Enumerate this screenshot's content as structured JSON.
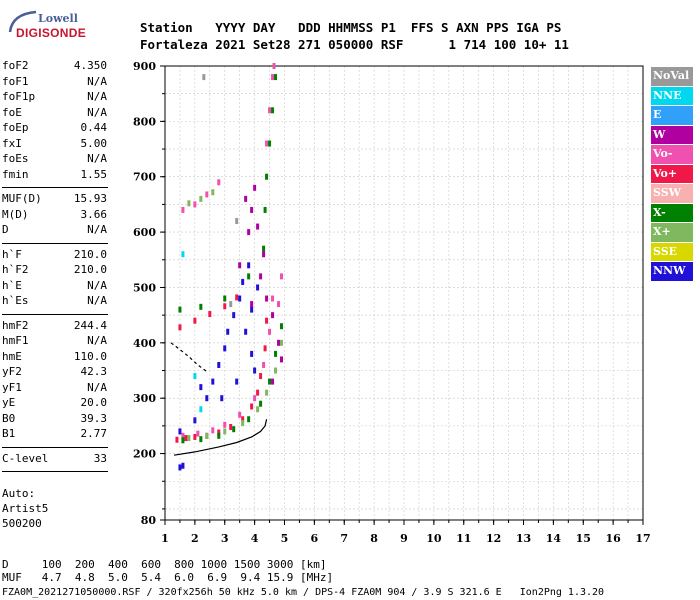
{
  "logo": {
    "line1": "Lowell",
    "line2": "DIGISONDE"
  },
  "header": {
    "labels": "Station   YYYY DAY   DDD HHMMSS P1  FFS S AXN PPS IGA PS",
    "values": "Fortaleza 2021 Set28 271 050000 RSF      1 714 100 10+ 11"
  },
  "params": [
    {
      "group": [
        {
          "k": "foF2",
          "v": "4.350"
        },
        {
          "k": "foF1",
          "v": "N/A"
        },
        {
          "k": "foF1p",
          "v": "N/A"
        },
        {
          "k": "foE",
          "v": "N/A"
        },
        {
          "k": "foEp",
          "v": "0.44"
        },
        {
          "k": "fxI",
          "v": "5.00"
        },
        {
          "k": "foEs",
          "v": "N/A"
        },
        {
          "k": "fmin",
          "v": "1.55"
        }
      ]
    },
    {
      "group": [
        {
          "k": "MUF(D)",
          "v": "15.93"
        },
        {
          "k": "M(D)",
          "v": "3.66"
        },
        {
          "k": "D",
          "v": "N/A"
        }
      ]
    },
    {
      "group": [
        {
          "k": "h`F",
          "v": "210.0"
        },
        {
          "k": "h`F2",
          "v": "210.0"
        },
        {
          "k": "h`E",
          "v": "N/A"
        },
        {
          "k": "h`Es",
          "v": "N/A"
        }
      ]
    },
    {
      "group": [
        {
          "k": "hmF2",
          "v": "244.4"
        },
        {
          "k": "hmF1",
          "v": "N/A"
        },
        {
          "k": "hmE",
          "v": "110.0"
        },
        {
          "k": "yF2",
          "v": "42.3"
        },
        {
          "k": "yF1",
          "v": "N/A"
        },
        {
          "k": "yE",
          "v": "20.0"
        },
        {
          "k": "B0",
          "v": "39.3"
        },
        {
          "k": "B1",
          "v": "2.77"
        }
      ]
    },
    {
      "group": [
        {
          "k": "C-level",
          "v": "33"
        }
      ]
    }
  ],
  "auto": {
    "line1": "Auto:",
    "line2": "Artist5",
    "line3": "500200"
  },
  "legend": [
    {
      "label": "NoVal",
      "color": "#999999"
    },
    {
      "label": "NNE",
      "color": "#00d8f0"
    },
    {
      "label": "E",
      "color": "#30a0f8"
    },
    {
      "label": "W",
      "color": "#b000a0"
    },
    {
      "label": "Vo-",
      "color": "#f050b0"
    },
    {
      "label": "Vo+",
      "color": "#f01848"
    },
    {
      "label": "SSW",
      "color": "#f8b0b0"
    },
    {
      "label": "X-",
      "color": "#008000"
    },
    {
      "label": "X+",
      "color": "#80b860"
    },
    {
      "label": "SSE",
      "color": "#d8d800"
    },
    {
      "label": "NNW",
      "color": "#2010d8"
    }
  ],
  "bottom": {
    "d_row": "D     100  200  400  600  800 1000 1500 3000 [km]",
    "muf_row": "MUF   4.7  4.8  5.0  5.4  6.0  6.9  9.4 15.9 [MHz]",
    "footer": "FZA0M_2021271050000.RSF / 320fx256h 50 kHz 5.0 km / DPS-4 FZA0M 904 / 3.9 S 321.6 E   Ion2Png 1.3.20"
  },
  "chart_data": {
    "type": "scatter",
    "xlim": [
      1,
      17
    ],
    "ylim": [
      80,
      900
    ],
    "xticks": [
      1,
      2,
      3,
      4,
      5,
      6,
      7,
      8,
      9,
      10,
      11,
      12,
      13,
      14,
      15,
      16,
      17
    ],
    "yticks": [
      80,
      200,
      300,
      400,
      500,
      600,
      700,
      800,
      900
    ],
    "xlabel": "",
    "ylabel": "",
    "series": [
      {
        "name": "Vo+",
        "color": "#f01848",
        "points": [
          [
            1.4,
            225
          ],
          [
            1.7,
            228
          ],
          [
            2.0,
            230
          ],
          [
            2.4,
            232
          ],
          [
            2.8,
            238
          ],
          [
            3.2,
            248
          ],
          [
            3.6,
            262
          ],
          [
            3.9,
            285
          ],
          [
            4.1,
            310
          ],
          [
            4.2,
            340
          ],
          [
            4.35,
            390
          ],
          [
            4.4,
            440
          ],
          [
            1.5,
            428
          ],
          [
            2.0,
            440
          ],
          [
            2.5,
            452
          ],
          [
            3.0,
            466
          ],
          [
            3.4,
            482
          ]
        ]
      },
      {
        "name": "Vo-",
        "color": "#f050b0",
        "points": [
          [
            1.6,
            232
          ],
          [
            2.1,
            236
          ],
          [
            2.6,
            242
          ],
          [
            3.0,
            252
          ],
          [
            3.5,
            270
          ],
          [
            4.0,
            300
          ],
          [
            4.3,
            360
          ],
          [
            4.5,
            420
          ],
          [
            4.6,
            480
          ],
          [
            4.4,
            760
          ],
          [
            4.5,
            820
          ],
          [
            4.6,
            880
          ],
          [
            4.65,
            900
          ],
          [
            1.6,
            640
          ],
          [
            2.0,
            650
          ],
          [
            2.4,
            668
          ],
          [
            2.8,
            690
          ],
          [
            4.9,
            520
          ],
          [
            4.8,
            470
          ]
        ]
      },
      {
        "name": "X-",
        "color": "#008000",
        "points": [
          [
            1.6,
            224
          ],
          [
            2.2,
            226
          ],
          [
            2.8,
            232
          ],
          [
            3.3,
            244
          ],
          [
            3.8,
            262
          ],
          [
            4.2,
            290
          ],
          [
            4.5,
            330
          ],
          [
            4.7,
            380
          ],
          [
            4.9,
            430
          ],
          [
            4.3,
            570
          ],
          [
            4.35,
            640
          ],
          [
            4.4,
            700
          ],
          [
            4.5,
            760
          ],
          [
            4.6,
            820
          ],
          [
            4.7,
            880
          ],
          [
            1.5,
            460
          ],
          [
            2.2,
            465
          ],
          [
            3.0,
            480
          ],
          [
            3.8,
            520
          ]
        ]
      },
      {
        "name": "X+",
        "color": "#80b860",
        "points": [
          [
            1.8,
            228
          ],
          [
            2.4,
            232
          ],
          [
            3.0,
            240
          ],
          [
            3.6,
            255
          ],
          [
            4.1,
            280
          ],
          [
            4.4,
            310
          ],
          [
            4.7,
            350
          ],
          [
            4.9,
            400
          ],
          [
            1.8,
            652
          ],
          [
            2.2,
            660
          ],
          [
            2.6,
            672
          ]
        ]
      },
      {
        "name": "NNW",
        "color": "#2010d8",
        "points": [
          [
            1.5,
            175
          ],
          [
            1.6,
            178
          ],
          [
            1.5,
            240
          ],
          [
            2.0,
            260
          ],
          [
            2.4,
            300
          ],
          [
            2.6,
            330
          ],
          [
            2.8,
            360
          ],
          [
            3.0,
            390
          ],
          [
            3.1,
            420
          ],
          [
            3.3,
            450
          ],
          [
            3.5,
            480
          ],
          [
            3.6,
            510
          ],
          [
            3.8,
            540
          ],
          [
            3.7,
            420
          ],
          [
            3.9,
            380
          ],
          [
            4.0,
            350
          ],
          [
            2.2,
            320
          ],
          [
            2.9,
            300
          ],
          [
            3.4,
            330
          ],
          [
            3.9,
            460
          ],
          [
            4.1,
            500
          ]
        ]
      },
      {
        "name": "W",
        "color": "#b000a0",
        "points": [
          [
            3.5,
            540
          ],
          [
            3.8,
            600
          ],
          [
            3.9,
            640
          ],
          [
            4.0,
            680
          ],
          [
            4.2,
            520
          ],
          [
            4.4,
            480
          ],
          [
            4.6,
            450
          ],
          [
            4.8,
            400
          ],
          [
            4.9,
            370
          ],
          [
            4.6,
            330
          ],
          [
            3.9,
            470
          ],
          [
            4.3,
            560
          ],
          [
            4.1,
            610
          ],
          [
            3.7,
            660
          ]
        ]
      },
      {
        "name": "NNE",
        "color": "#00d8f0",
        "points": [
          [
            1.6,
            560
          ],
          [
            2.0,
            340
          ],
          [
            2.2,
            280
          ]
        ]
      },
      {
        "name": "NoVal",
        "color": "#999999",
        "points": [
          [
            2.3,
            880
          ],
          [
            3.2,
            470
          ],
          [
            3.4,
            620
          ]
        ]
      }
    ],
    "lines": [
      {
        "name": "profile",
        "color": "#000000",
        "points": [
          [
            1.3,
            197
          ],
          [
            2.0,
            203
          ],
          [
            2.8,
            212
          ],
          [
            3.4,
            220
          ],
          [
            3.9,
            230
          ],
          [
            4.2,
            240
          ],
          [
            4.35,
            250
          ],
          [
            4.4,
            262
          ]
        ]
      },
      {
        "name": "dashed",
        "color": "#000000",
        "dash": true,
        "points": [
          [
            1.2,
            400
          ],
          [
            1.5,
            388
          ],
          [
            1.8,
            375
          ],
          [
            2.1,
            360
          ],
          [
            2.4,
            348
          ]
        ]
      }
    ]
  }
}
